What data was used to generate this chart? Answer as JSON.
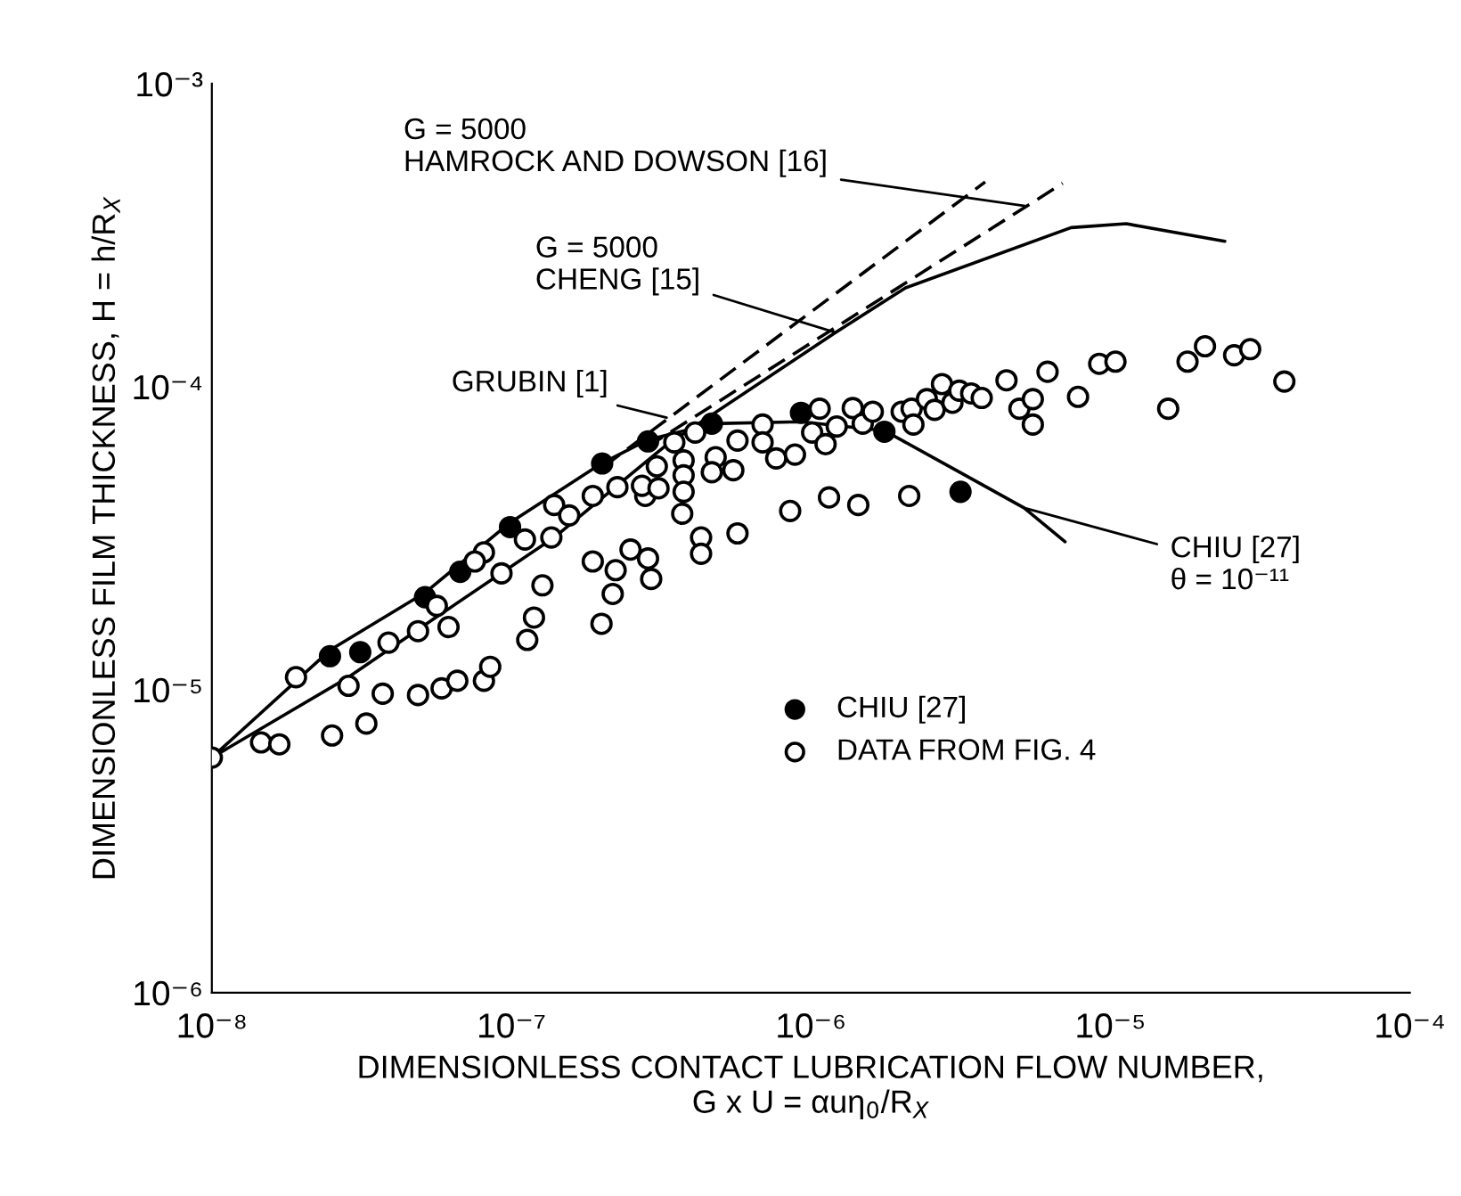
{
  "chart_data": {
    "type": "scatter",
    "xlabel": "DIMENSIONLESS CONTACT LUBRICATION FLOW NUMBER,\nG x U = αuη$_{0}$/R$_{X}$",
    "ylabel": "DIMENSIONLESS FILM THICKNESS, H = h/R$_{X}$",
    "log": "xy",
    "grid": false,
    "legend": "bottom",
    "xlim": [
      1e-08,
      0.0001
    ],
    "ylim": [
      1e-06,
      0.001
    ],
    "xticks": [
      {
        "value": 1e-08,
        "label": "10⁻⁸"
      },
      {
        "value": 1e-07,
        "label": "10⁻⁷"
      },
      {
        "value": 1e-06,
        "label": "10⁻⁶"
      },
      {
        "value": 1e-05,
        "label": "10⁻⁵"
      },
      {
        "value": 0.0001,
        "label": "10⁻⁴"
      }
    ],
    "yticks": [
      {
        "value": 1e-06,
        "label": "10⁻⁶"
      },
      {
        "value": 1e-05,
        "label": "10⁻⁵"
      },
      {
        "value": 0.0001,
        "label": "10⁻⁴"
      },
      {
        "value": 0.001,
        "label": "10⁻³"
      }
    ],
    "annotations": [
      {
        "text": "CHIU [27]\nθ = 10⁻¹¹",
        "x": 5.15e-06,
        "y": 3.98e-05
      },
      {
        "text": "G = 5000\nCHENG [15]",
        "x": 1.21e-06,
        "y": 0.000151
      },
      {
        "text": "GRUBIN [1]",
        "x": 3.3e-07,
        "y": 7.9e-05
      },
      {
        "text": "G = 5000\nHAMROCK AND DOWSON [16]",
        "x": 5.2e-06,
        "y": 0.000395
      }
    ],
    "series": [
      {
        "name": "CHIU [27]",
        "marker": "circle",
        "color": "#000000",
        "x": [
          2.48e-08,
          3.13e-08,
          5.15e-08,
          6.75e-08,
          9.9e-08,
          2.01e-07,
          2.86e-07,
          4.67e-07,
          9.27e-07,
          1.76e-06,
          3.16e-06
        ],
        "values": [
          1.29e-05,
          1.33e-05,
          2.02e-05,
          2.45e-05,
          3.44e-05,
          5.58e-05,
          6.6e-05,
          7.55e-05,
          8.2e-05,
          7.1e-05,
          4.5e-05
        ]
      },
      {
        "name": "DATA FROM FIG. 4",
        "marker": "circle",
        "color": "#000000",
        "x": [
          1e-08,
          1.46e-08,
          1.68e-08,
          1.91e-08,
          2.52e-08,
          2.86e-08,
          3.28e-08,
          3.72e-08,
          3.89e-08,
          4.88e-08,
          4.88e-08,
          5.64e-08,
          5.85e-08,
          6.17e-08,
          6.6e-08,
          8.1e-08,
          8.5e-08,
          8.1e-08,
          7.55e-08,
          9.27e-08,
          1.11e-07,
          1.13e-07,
          1.19e-07,
          1.27e-07,
          1.36e-07,
          1.39e-07,
          1.56e-07,
          1.87e-07,
          1.87e-07,
          2e-07,
          2.18e-07,
          2.23e-07,
          2.26e-07,
          2.5e-07,
          2.86e-07,
          2.93e-07,
          2.8e-07,
          2.73e-07,
          3.06e-07,
          3.1e-07,
          3.5e-07,
          3.76e-07,
          3.76e-07,
          3.76e-07,
          3.72e-07,
          4.11e-07,
          4.3e-07,
          4.3e-07,
          5.69e-07,
          4.81e-07,
          4.67e-07,
          5.51e-07,
          5.69e-07,
          6.9e-07,
          6.9e-07,
          7.66e-07,
          8.85e-07,
          8.53e-07,
          1.01e-06,
          1.07e-06,
          1.12e-06,
          1.15e-06,
          1.22e-06,
          1.38e-06,
          1.44e-06,
          1.49e-06,
          1.61e-06,
          2.01e-06,
          2.13e-06,
          2.17e-06,
          2.2e-06,
          2.44e-06,
          2.59e-06,
          2.74e-06,
          2.97e-06,
          3.13e-06,
          3.43e-06,
          3.72e-06,
          4.5e-06,
          4.97e-06,
          5.51e-06,
          5.51e-06,
          6.17e-06,
          7.8e-06,
          9.18e-06,
          1.04e-05,
          1.56e-05,
          1.81e-05,
          2.07e-05,
          2.59e-05,
          2.93e-05,
          3.81e-05
        ],
        "values": [
          5.97e-06,
          6.7e-06,
          6.6e-06,
          1.1e-05,
          7.06e-06,
          1.03e-05,
          7.73e-06,
          9.7e-06,
          1.43e-05,
          9.6e-06,
          1.56e-05,
          1.89e-05,
          1.01e-05,
          1.61e-05,
          1.07e-05,
          1.07e-05,
          1.19e-05,
          2.84e-05,
          2.65e-05,
          2.42e-05,
          3.13e-05,
          1.46e-05,
          1.73e-05,
          2.21e-05,
          3.18e-05,
          4.07e-05,
          3.76e-05,
          2.65e-05,
          4.36e-05,
          1.65e-05,
          2.07e-05,
          2.48e-05,
          4.66e-05,
          2.9e-05,
          2.71e-05,
          2.32e-05,
          4.36e-05,
          4.71e-05,
          5.46e-05,
          4.62e-05,
          6.55e-05,
          5.71e-05,
          5.1e-05,
          4.5e-05,
          3.81e-05,
          7.06e-05,
          3.18e-05,
          2.81e-05,
          3.28e-05,
          5.85e-05,
          5.22e-05,
          5.3e-05,
          6.64e-05,
          7.5e-05,
          6.55e-05,
          5.8e-05,
          5.97e-05,
          3.89e-05,
          7.06e-05,
          8.46e-05,
          6.46e-05,
          4.31e-05,
          7.39e-05,
          8.5e-05,
          4.07e-05,
          7.55e-05,
          8.27e-05,
          8.27e-05,
          4.36e-05,
          8.46e-05,
          7.5e-05,
          9.1e-05,
          8.39e-05,
          0.000102,
          8.85e-05,
          9.7e-05,
          9.5e-05,
          9.18e-05,
          0.000105,
          8.46e-05,
          9.1e-05,
          7.5e-05,
          0.000112,
          9.26e-05,
          0.000119,
          0.000121,
          8.46e-05,
          0.000121,
          0.000136,
          0.000127,
          0.000133,
          0.000104
        ]
      },
      {
        "type": "line",
        "marker": "none",
        "line_style": "solid",
        "color": "#000000",
        "x": [
          1e-08,
          2.48e-08,
          5.15e-08,
          9.9e-08,
          2e-07,
          2.86e-07,
          4.67e-07,
          9.27e-07,
          1.76e-06,
          3.28e-06,
          5.15e-06,
          7.06e-06
        ],
        "values": [
          5.97e-06,
          1.35e-05,
          2.09e-05,
          3.56e-05,
          5.58e-05,
          6.68e-05,
          7.55e-05,
          7.66e-05,
          7.16e-05,
          5.1e-05,
          3.98e-05,
          3.08e-05
        ]
      },
      {
        "type": "line",
        "marker": "none",
        "line_style": "solid",
        "color": "#000000",
        "x": [
          1e-08,
          2.86e-08,
          5.64e-08,
          1.39e-07,
          3.28e-07,
          1.21e-06,
          2.07e-06,
          7.4e-06,
          1.13e-05,
          2.41e-05
        ],
        "values": [
          5.97e-06,
          1.1e-05,
          1.74e-05,
          3.18e-05,
          6.4e-05,
          0.000151,
          0.000212,
          0.000335,
          0.000345,
          0.000302
        ]
      },
      {
        "type": "line",
        "marker": "none",
        "line_style": "dashed",
        "color": "#000000",
        "x": [
          2.04e-07,
          3.82e-06
        ],
        "values": [
          5.46e-05,
          0.000474
        ]
      },
      {
        "type": "line",
        "marker": "none",
        "line_style": "dashed",
        "color": "#000000",
        "x": [
          2.82e-07,
          6.93e-06
        ],
        "values": [
          6.3e-05,
          0.000469
        ]
      }
    ]
  }
}
